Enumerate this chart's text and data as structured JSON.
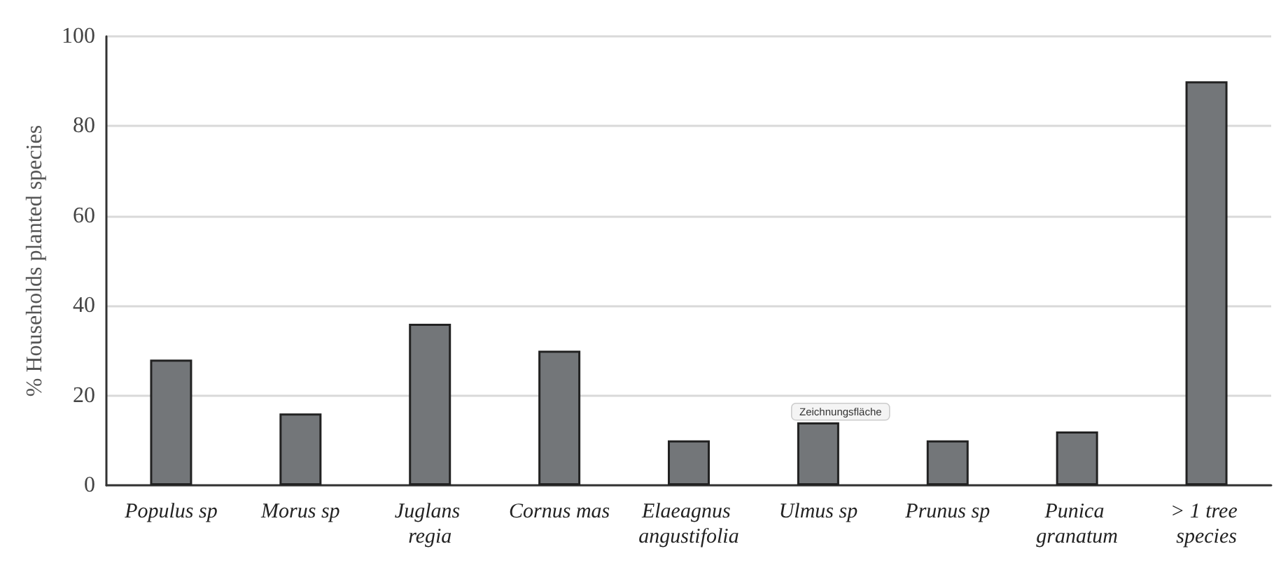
{
  "chart_data": {
    "type": "bar",
    "ylabel": "% Households planted species",
    "categories": [
      "Populus sp",
      "Morus sp",
      "Juglans regia",
      "Cornus mas",
      "Elaeagnus angustifolia",
      "Ulmus sp",
      "Prunus sp",
      "Punica granatum",
      "> 1 tree species"
    ],
    "values": [
      28,
      16,
      36,
      30,
      10,
      14,
      10,
      12,
      90
    ],
    "color": "#737679",
    "ylim": [
      0,
      100
    ],
    "yticks": [
      0,
      20,
      40,
      60,
      80,
      100
    ],
    "grid": "y",
    "annotations": [
      "Zeichnungsfläche"
    ]
  }
}
